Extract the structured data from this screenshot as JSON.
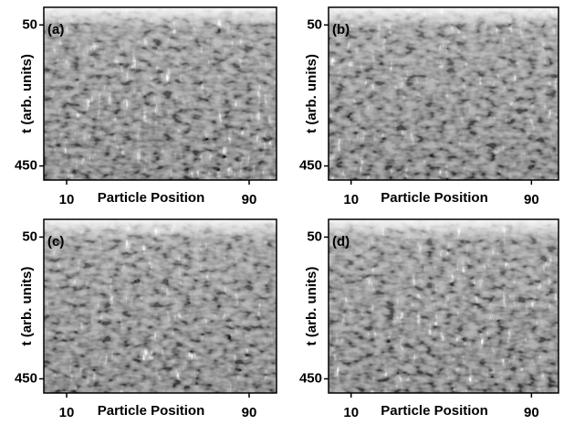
{
  "chart_data": [
    {
      "type": "heatmap",
      "title": "(a)",
      "xlabel": "Particle Position",
      "ylabel": "t (arb. units)",
      "xlim": [
        0,
        102
      ],
      "ylim": [
        0,
        490
      ],
      "xticks": [
        10,
        90
      ],
      "yticks": [
        50,
        450
      ]
    },
    {
      "type": "heatmap",
      "title": "(b)",
      "xlabel": "Particle Position",
      "ylabel": "t (arb. units)",
      "xlim": [
        0,
        102
      ],
      "ylim": [
        0,
        490
      ],
      "xticks": [
        10,
        90
      ],
      "yticks": [
        50,
        450
      ]
    },
    {
      "type": "heatmap",
      "title": "(c)",
      "xlabel": "Particle Position",
      "ylabel": "t (arb. units)",
      "xlim": [
        0,
        102
      ],
      "ylim": [
        0,
        490
      ],
      "xticks": [
        10,
        90
      ],
      "yticks": [
        50,
        450
      ]
    },
    {
      "type": "heatmap",
      "title": "(d)",
      "xlabel": "Particle Position",
      "ylabel": "t (arb. units)",
      "xlim": [
        0,
        102
      ],
      "ylim": [
        0,
        490
      ],
      "xticks": [
        10,
        90
      ],
      "yticks": [
        50,
        450
      ]
    }
  ]
}
